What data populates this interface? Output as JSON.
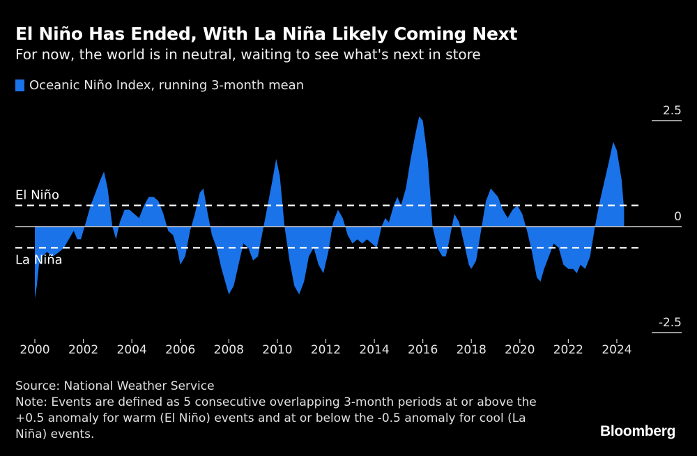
{
  "header": {
    "title": "El Niño Has Ended, With La Niña Likely Coming Next",
    "subtitle": "For now, the world is in neutral, waiting to see what's next in store"
  },
  "legend": {
    "label": "Oceanic Niño Index, running 3-month mean",
    "color": "#1a73e8"
  },
  "footer": {
    "source": "Source: National Weather Service",
    "note": "Note: Events are defined as 5 consecutive overlapping 3-month periods at or above the +0.5 anomaly for warm (El Niño) events and at or below the -0.5 anomaly for cool (La Niña) events."
  },
  "brand": "Bloomberg",
  "chart_data": {
    "type": "area",
    "title": "El Niño Has Ended, With La Niña Likely Coming Next",
    "subtitle": "For now, the world is in neutral, waiting to see what's next in store",
    "xlabel": "",
    "ylabel": "",
    "xlim": [
      2000,
      2025
    ],
    "ylim": [
      -2.5,
      2.5
    ],
    "x_ticks": [
      2000,
      2002,
      2004,
      2006,
      2008,
      2010,
      2012,
      2014,
      2016,
      2018,
      2020,
      2022,
      2024
    ],
    "x_tick_labels": [
      "2000",
      "2002",
      "2004",
      "2006",
      "2008",
      "2010",
      "2012",
      "2014",
      "2016",
      "2018",
      "2020",
      "2022",
      "2024"
    ],
    "y_ticks": [
      2.5,
      0,
      -2.5
    ],
    "y_tick_labels": [
      "2.5",
      "0",
      "-2.5"
    ],
    "y_axis_position": "right",
    "grid": false,
    "legend_position": "top-left",
    "reference_lines": [
      {
        "value": 0.5,
        "label": "El Niño",
        "style": "dashed"
      },
      {
        "value": -0.5,
        "label": "La Niña",
        "style": "dashed"
      },
      {
        "value": 0,
        "label": "",
        "style": "solid"
      }
    ],
    "series": [
      {
        "name": "Oceanic Niño Index, running 3-month mean",
        "color": "#1a73e8",
        "x": [
          2000.0,
          2000.08,
          2000.17,
          2000.3,
          2000.5,
          2000.75,
          2001.0,
          2001.2,
          2001.4,
          2001.6,
          2001.75,
          2001.9,
          2002.1,
          2002.3,
          2002.5,
          2002.7,
          2002.85,
          2003.0,
          2003.2,
          2003.35,
          2003.5,
          2003.7,
          2003.9,
          2004.1,
          2004.3,
          2004.5,
          2004.7,
          2004.9,
          2005.1,
          2005.3,
          2005.5,
          2005.7,
          2005.9,
          2006.0,
          2006.2,
          2006.4,
          2006.6,
          2006.8,
          2006.95,
          2007.1,
          2007.3,
          2007.5,
          2007.7,
          2007.9,
          2008.0,
          2008.2,
          2008.4,
          2008.6,
          2008.8,
          2009.0,
          2009.2,
          2009.4,
          2009.6,
          2009.8,
          2009.95,
          2010.1,
          2010.3,
          2010.5,
          2010.7,
          2010.9,
          2011.1,
          2011.3,
          2011.5,
          2011.7,
          2011.9,
          2012.1,
          2012.3,
          2012.5,
          2012.7,
          2012.9,
          2013.1,
          2013.3,
          2013.5,
          2013.7,
          2013.9,
          2014.1,
          2014.3,
          2014.45,
          2014.6,
          2014.8,
          2014.95,
          2015.1,
          2015.3,
          2015.5,
          2015.7,
          2015.85,
          2016.0,
          2016.2,
          2016.4,
          2016.6,
          2016.8,
          2016.95,
          2017.1,
          2017.3,
          2017.5,
          2017.7,
          2017.9,
          2018.0,
          2018.2,
          2018.4,
          2018.6,
          2018.8,
          2018.95,
          2019.1,
          2019.3,
          2019.5,
          2019.7,
          2019.9,
          2020.1,
          2020.3,
          2020.5,
          2020.7,
          2020.85,
          2021.0,
          2021.2,
          2021.4,
          2021.6,
          2021.8,
          2022.0,
          2022.2,
          2022.35,
          2022.5,
          2022.7,
          2022.9,
          2023.1,
          2023.3,
          2023.5,
          2023.7,
          2023.85,
          2024.0,
          2024.2,
          2024.3
        ],
        "values": [
          -1.7,
          -1.4,
          -0.9,
          -0.7,
          -0.6,
          -0.7,
          -0.6,
          -0.5,
          -0.3,
          -0.1,
          -0.3,
          -0.3,
          0.1,
          0.5,
          0.8,
          1.1,
          1.3,
          0.9,
          0.0,
          -0.3,
          0.1,
          0.4,
          0.4,
          0.3,
          0.2,
          0.5,
          0.7,
          0.7,
          0.6,
          0.3,
          -0.1,
          -0.2,
          -0.6,
          -0.9,
          -0.7,
          -0.1,
          0.3,
          0.8,
          0.9,
          0.4,
          -0.2,
          -0.5,
          -1.0,
          -1.4,
          -1.6,
          -1.4,
          -0.9,
          -0.4,
          -0.5,
          -0.8,
          -0.7,
          -0.1,
          0.5,
          1.1,
          1.6,
          1.2,
          0.0,
          -0.8,
          -1.4,
          -1.6,
          -1.3,
          -0.7,
          -0.5,
          -0.9,
          -1.1,
          -0.6,
          0.1,
          0.4,
          0.2,
          -0.2,
          -0.4,
          -0.3,
          -0.4,
          -0.3,
          -0.4,
          -0.5,
          0.0,
          0.2,
          0.1,
          0.5,
          0.7,
          0.5,
          0.9,
          1.6,
          2.2,
          2.6,
          2.5,
          1.6,
          0.0,
          -0.5,
          -0.7,
          -0.7,
          -0.3,
          0.3,
          0.1,
          -0.4,
          -0.9,
          -1.0,
          -0.8,
          -0.1,
          0.6,
          0.9,
          0.8,
          0.7,
          0.4,
          0.2,
          0.4,
          0.5,
          0.3,
          -0.1,
          -0.6,
          -1.2,
          -1.3,
          -1.0,
          -0.7,
          -0.4,
          -0.5,
          -0.9,
          -1.0,
          -1.0,
          -1.1,
          -0.9,
          -1.0,
          -0.7,
          0.0,
          0.6,
          1.1,
          1.6,
          2.0,
          1.8,
          1.1,
          0.4
        ]
      }
    ]
  }
}
